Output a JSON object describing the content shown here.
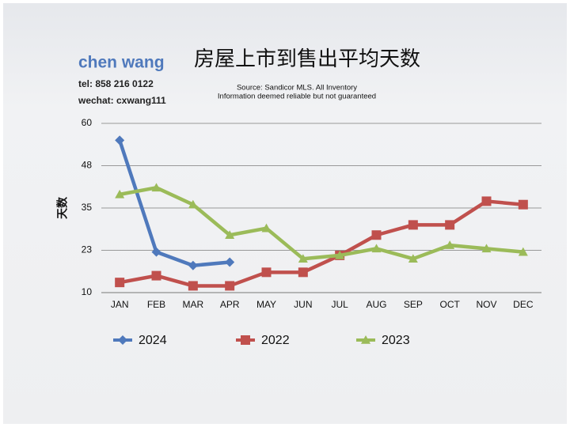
{
  "chart_data": {
    "type": "line",
    "title": "房屋上市到售出平均天数",
    "author": {
      "name": "chen wang",
      "tel": "tel: 858 216 0122",
      "wechat": "wechat: cxwang111"
    },
    "source": [
      "Source: Sandicor MLS. All Inventory",
      "Information deemed reliable but not guaranteed"
    ],
    "ylabel": "天数",
    "categories": [
      "JAN",
      "FEB",
      "MAR",
      "APR",
      "MAY",
      "JUN",
      "JUL",
      "AUG",
      "SEP",
      "OCT",
      "NOV",
      "DEC"
    ],
    "series": [
      {
        "name": "2024",
        "color": "#4f79bc",
        "marker": "diamond",
        "values": [
          55,
          22,
          18,
          19,
          null,
          null,
          null,
          null,
          null,
          null,
          null,
          null
        ]
      },
      {
        "name": "2022",
        "color": "#c0504d",
        "marker": "square",
        "values": [
          13,
          15,
          12,
          12,
          16,
          16,
          21,
          27,
          30,
          30,
          37,
          36
        ]
      },
      {
        "name": "2023",
        "color": "#9bbb59",
        "marker": "triangle",
        "values": [
          39,
          41,
          36,
          27,
          29,
          20,
          21,
          23,
          20,
          24,
          23,
          22
        ]
      }
    ],
    "ylim": [
      10,
      60
    ],
    "yticks": [
      10,
      {
        "value": 22.5,
        "label": "23"
      },
      35,
      {
        "value": 47.5,
        "label": "48"
      },
      60
    ],
    "grid": true
  }
}
